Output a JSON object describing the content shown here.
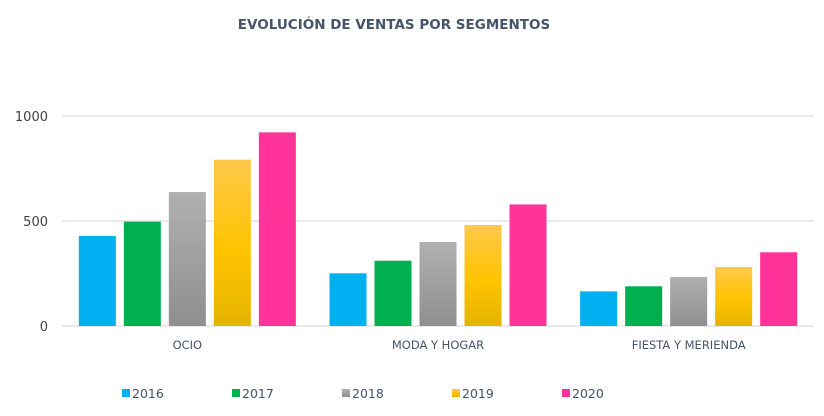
{
  "chart_data": {
    "type": "bar",
    "title": "EVOLUCIÓN DE VENTAS POR SEGMENTOS",
    "xlabel": "",
    "ylabel": "",
    "categories": [
      "OCIO",
      "MODA Y HOGAR",
      "FIESTA Y MERIENDA"
    ],
    "series": [
      {
        "name": "2016",
        "color": "#00b0f0",
        "values": [
          429,
          251,
          165
        ]
      },
      {
        "name": "2017",
        "color": "#00b050",
        "values": [
          497,
          311,
          189
        ]
      },
      {
        "name": "2018",
        "color": "#a5a5a5",
        "values": [
          638,
          400,
          233
        ]
      },
      {
        "name": "2019",
        "color": "#ffc000",
        "values": [
          792,
          481,
          281
        ]
      },
      {
        "name": "2020",
        "color": "#ff3399",
        "values": [
          922,
          579,
          351
        ]
      }
    ],
    "ylim": [
      0,
      1000
    ],
    "yticks": [
      0,
      500,
      1000
    ],
    "ytick_labels": [
      "0",
      "500",
      "1000"
    ],
    "grid": true,
    "legend_position": "bottom"
  }
}
